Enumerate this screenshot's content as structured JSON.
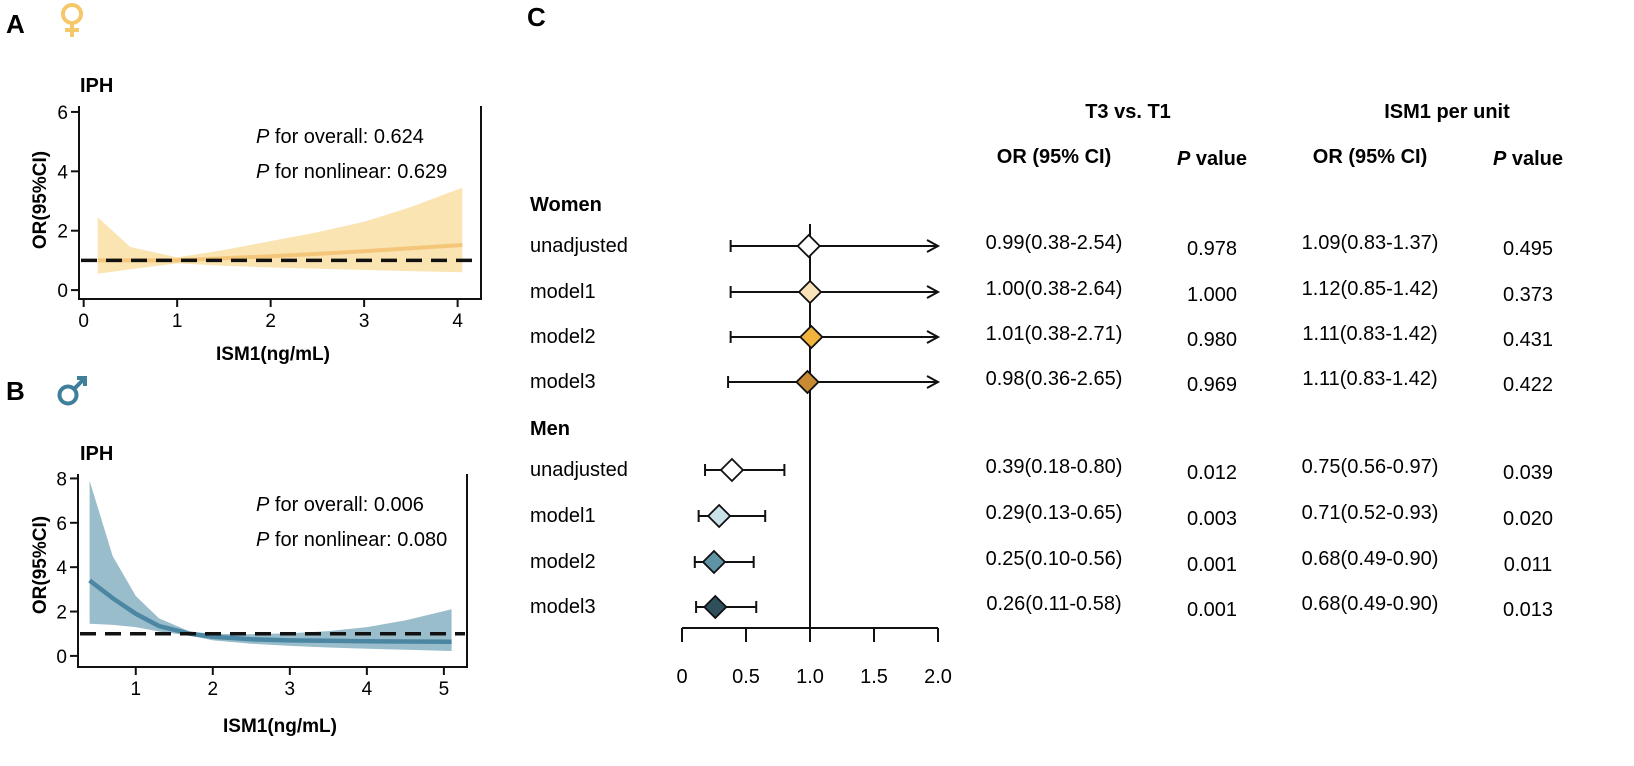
{
  "colors": {
    "female_accent": "#f5c86a",
    "female_band": "#f9dfa5",
    "female_line": "#f3c67a",
    "male_accent": "#3f7f9a",
    "male_band": "#88b2c3",
    "male_line": "#4b86a3",
    "women_markers": [
      "#ffffff",
      "#fbe3b9",
      "#f2b33c",
      "#c88a33"
    ],
    "men_markers": [
      "#ffffff",
      "#c9e2ea",
      "#5f93a6",
      "#2f4f5c"
    ]
  },
  "panel_a": {
    "letter": "A",
    "symbol_icon": "female-symbol-icon",
    "title": "IPH",
    "annotation": {
      "overall_label": "P",
      "overall_text": " for overall: 0.624",
      "nonlinear_label": "P",
      "nonlinear_text": " for nonlinear: 0.629"
    }
  },
  "panel_b": {
    "letter": "B",
    "symbol_icon": "male-symbol-icon",
    "title": "IPH",
    "annotation": {
      "overall_label": "P",
      "overall_text": " for overall: 0.006",
      "nonlinear_label": "P",
      "nonlinear_text": " for nonlinear: 0.080"
    }
  },
  "panel_c": {
    "letter": "C",
    "headers": {
      "group1": "T3 vs. T1",
      "group2": "ISM1 per unit",
      "or_ci": "OR (95% CI)",
      "p_label": "P",
      "p_value": " value"
    }
  },
  "chart_data": [
    {
      "type": "line",
      "panel": "A",
      "title": "IPH",
      "xlabel": "ISM1(ng/mL)",
      "ylabel": "OR(95%CI)",
      "xlim": [
        -0.05,
        4.25
      ],
      "ylim": [
        -0.3,
        6.2
      ],
      "xticks": [
        0,
        1,
        2,
        3,
        4
      ],
      "yticks": [
        0,
        2,
        4,
        6
      ],
      "reference_line": 1,
      "series": [
        {
          "name": "OR",
          "x": [
            0.15,
            0.5,
            1.0,
            1.5,
            2.0,
            2.5,
            3.0,
            3.5,
            4.05
          ],
          "values": [
            1.0,
            1.0,
            1.0,
            1.07,
            1.14,
            1.22,
            1.31,
            1.41,
            1.52
          ]
        },
        {
          "name": "upper 95% CI",
          "x": [
            0.15,
            0.5,
            1.0,
            1.5,
            2.0,
            2.5,
            3.0,
            3.5,
            4.05
          ],
          "values": [
            2.45,
            1.45,
            1.1,
            1.35,
            1.65,
            1.95,
            2.3,
            2.8,
            3.45
          ]
        },
        {
          "name": "lower 95% CI",
          "x": [
            0.15,
            0.5,
            1.0,
            1.5,
            2.0,
            2.5,
            3.0,
            3.5,
            4.05
          ],
          "values": [
            0.55,
            0.7,
            0.9,
            0.82,
            0.76,
            0.72,
            0.68,
            0.64,
            0.6
          ]
        }
      ]
    },
    {
      "type": "line",
      "panel": "B",
      "title": "IPH",
      "xlabel": "ISM1(ng/mL)",
      "ylabel": "OR(95%CI)",
      "xlim": [
        0.25,
        5.3
      ],
      "ylim": [
        -0.5,
        8.2
      ],
      "xticks": [
        1,
        2,
        3,
        4,
        5
      ],
      "yticks": [
        0,
        2,
        4,
        6,
        8
      ],
      "reference_line": 1,
      "series": [
        {
          "name": "OR",
          "x": [
            0.4,
            0.7,
            1.0,
            1.3,
            1.7,
            2.0,
            2.5,
            3.0,
            3.5,
            4.0,
            4.5,
            5.1
          ],
          "values": [
            3.4,
            2.6,
            1.9,
            1.35,
            1.0,
            0.86,
            0.75,
            0.7,
            0.68,
            0.66,
            0.65,
            0.64
          ]
        },
        {
          "name": "upper 95% CI",
          "x": [
            0.4,
            0.7,
            1.0,
            1.3,
            1.7,
            2.0,
            2.5,
            3.0,
            3.5,
            4.0,
            4.5,
            5.1
          ],
          "values": [
            7.9,
            4.5,
            2.7,
            1.7,
            1.1,
            1.0,
            0.98,
            1.02,
            1.12,
            1.3,
            1.6,
            2.1
          ]
        },
        {
          "name": "lower 95% CI",
          "x": [
            0.4,
            0.7,
            1.0,
            1.3,
            1.7,
            2.0,
            2.5,
            3.0,
            3.5,
            4.0,
            4.5,
            5.1
          ],
          "values": [
            1.45,
            1.4,
            1.3,
            1.1,
            0.92,
            0.7,
            0.55,
            0.45,
            0.38,
            0.32,
            0.28,
            0.22
          ]
        }
      ]
    },
    {
      "type": "forest",
      "panel": "C",
      "xticks": [
        0,
        0.5,
        1.0,
        1.5,
        2.0
      ],
      "xtick_labels": [
        "0",
        "0.5",
        "1.0",
        "1.5",
        "2.0"
      ],
      "xlim": [
        0,
        2.0
      ],
      "reference_line": 1.0,
      "groups": [
        {
          "label": "Women",
          "rows": [
            {
              "label": "unadjusted",
              "or": 0.99,
              "lo": 0.38,
              "hi": 2.54,
              "arrow": true,
              "t3_or_ci": "0.99(0.38-2.54)",
              "t3_p": "0.978",
              "unit_or_ci": "1.09(0.83-1.37)",
              "unit_p": "0.495"
            },
            {
              "label": "model1",
              "or": 1.0,
              "lo": 0.38,
              "hi": 2.64,
              "arrow": true,
              "t3_or_ci": "1.00(0.38-2.64)",
              "t3_p": "1.000",
              "unit_or_ci": "1.12(0.85-1.42)",
              "unit_p": "0.373"
            },
            {
              "label": "model2",
              "or": 1.01,
              "lo": 0.38,
              "hi": 2.71,
              "arrow": true,
              "t3_or_ci": "1.01(0.38-2.71)",
              "t3_p": "0.980",
              "unit_or_ci": "1.11(0.83-1.42)",
              "unit_p": "0.431"
            },
            {
              "label": "model3",
              "or": 0.98,
              "lo": 0.36,
              "hi": 2.65,
              "arrow": true,
              "t3_or_ci": "0.98(0.36-2.65)",
              "t3_p": "0.969",
              "unit_or_ci": "1.11(0.83-1.42)",
              "unit_p": "0.422"
            }
          ]
        },
        {
          "label": "Men",
          "rows": [
            {
              "label": "unadjusted",
              "or": 0.39,
              "lo": 0.18,
              "hi": 0.8,
              "arrow": false,
              "t3_or_ci": "0.39(0.18-0.80)",
              "t3_p": "0.012",
              "unit_or_ci": "0.75(0.56-0.97)",
              "unit_p": "0.039"
            },
            {
              "label": "model1",
              "or": 0.29,
              "lo": 0.13,
              "hi": 0.65,
              "arrow": false,
              "t3_or_ci": "0.29(0.13-0.65)",
              "t3_p": "0.003",
              "unit_or_ci": "0.71(0.52-0.93)",
              "unit_p": "0.020"
            },
            {
              "label": "model2",
              "or": 0.25,
              "lo": 0.1,
              "hi": 0.56,
              "arrow": false,
              "t3_or_ci": "0.25(0.10-0.56)",
              "t3_p": "0.001",
              "unit_or_ci": "0.68(0.49-0.90)",
              "unit_p": "0.011"
            },
            {
              "label": "model3",
              "or": 0.26,
              "lo": 0.11,
              "hi": 0.58,
              "arrow": false,
              "t3_or_ci": "0.26(0.11-0.58)",
              "t3_p": "0.001",
              "unit_or_ci": "0.68(0.49-0.90)",
              "unit_p": "0.013"
            }
          ]
        }
      ]
    }
  ]
}
